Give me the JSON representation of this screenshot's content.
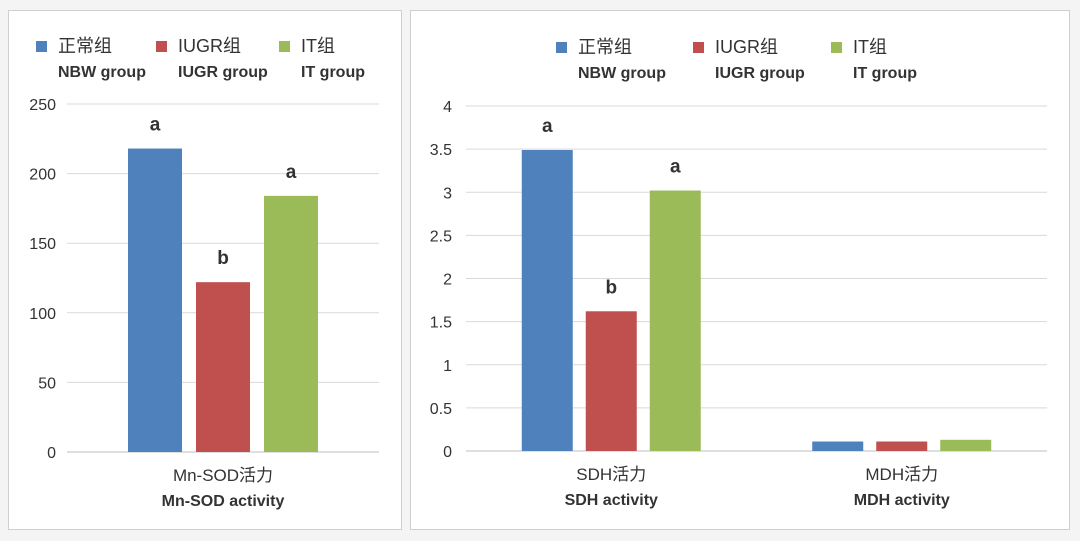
{
  "colors": {
    "normal": "#4f81bd",
    "iugr": "#c0504d",
    "it": "#9bbb59",
    "grid": "#d9d9d9",
    "axis": "#bfbfbf",
    "text": "#333333"
  },
  "chart_data": [
    {
      "type": "bar",
      "legend": [
        {
          "cn": "正常组",
          "en": "NBW group",
          "color": "#4f81bd"
        },
        {
          "cn": "IUGR组",
          "en": "IUGR group",
          "color": "#c0504d"
        },
        {
          "cn": "IT组",
          "en": "IT group",
          "color": "#9bbb59"
        }
      ],
      "categories": [
        {
          "cn": "Mn-SOD活力",
          "en": "Mn-SOD activity"
        }
      ],
      "series": [
        {
          "name": "正常组 NBW group",
          "values": [
            218
          ],
          "labels": [
            "a"
          ]
        },
        {
          "name": "IUGR组 IUGR group",
          "values": [
            122
          ],
          "labels": [
            "b"
          ]
        },
        {
          "name": "IT组 IT group",
          "values": [
            184
          ],
          "labels": [
            "a"
          ]
        }
      ],
      "ylim": [
        0,
        250
      ],
      "yticks": [
        0,
        50,
        100,
        150,
        200,
        250
      ],
      "ytick_labels": [
        "0",
        "50",
        "100",
        "150",
        "200",
        "250"
      ],
      "grid": true,
      "legend_position": "top"
    },
    {
      "type": "bar",
      "legend": [
        {
          "cn": "正常组",
          "en": "NBW group",
          "color": "#4f81bd"
        },
        {
          "cn": "IUGR组",
          "en": "IUGR group",
          "color": "#c0504d"
        },
        {
          "cn": "IT组",
          "en": "IT group",
          "color": "#9bbb59"
        }
      ],
      "categories": [
        {
          "cn": "SDH活力",
          "en": "SDH activity"
        },
        {
          "cn": "MDH活力",
          "en": "MDH activity"
        }
      ],
      "series": [
        {
          "name": "正常组 NBW group",
          "values": [
            3.49,
            0.11
          ],
          "labels": [
            "a",
            ""
          ]
        },
        {
          "name": "IUGR组 IUGR group",
          "values": [
            1.62,
            0.11
          ],
          "labels": [
            "b",
            ""
          ]
        },
        {
          "name": "IT组 IT group",
          "values": [
            3.02,
            0.13
          ],
          "labels": [
            "a",
            ""
          ]
        }
      ],
      "ylim": [
        0,
        4
      ],
      "yticks": [
        0,
        0.5,
        1,
        1.5,
        2,
        2.5,
        3,
        3.5,
        4
      ],
      "ytick_labels": [
        "0",
        "0.5",
        "1",
        "1.5",
        "2",
        "2.5",
        "3",
        "3.5",
        "4"
      ],
      "grid": true,
      "legend_position": "top"
    }
  ]
}
